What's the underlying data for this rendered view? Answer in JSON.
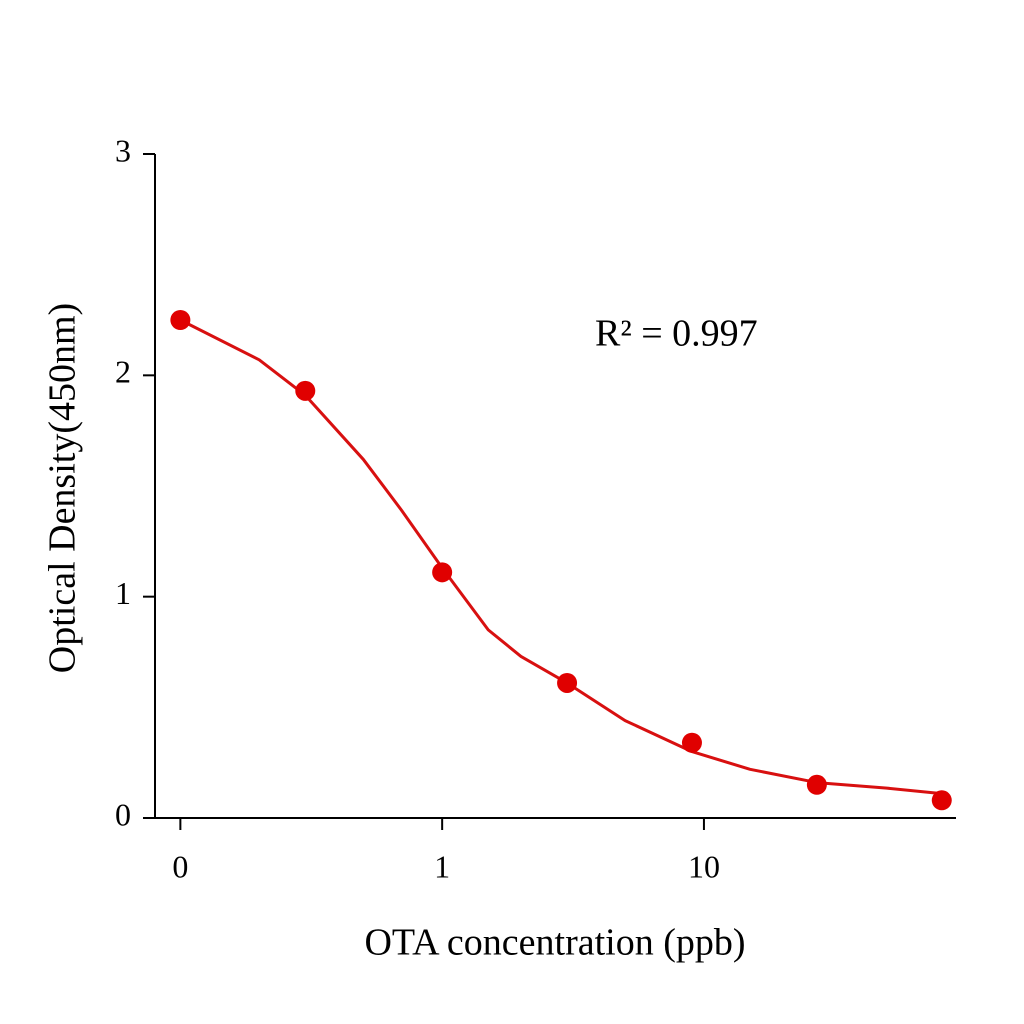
{
  "chart_data": {
    "type": "scatter",
    "x_label": "OTA concentration (ppb)",
    "y_label": "Optical Density(450nm)",
    "annotation": "R² = 0.997",
    "xscale": "log",
    "xlim": [
      0.08,
      91
    ],
    "ylim": [
      0,
      3
    ],
    "xticks": [
      {
        "value": 0.1,
        "label": "0"
      },
      1,
      10
    ],
    "yticks": [
      0,
      1,
      2,
      3
    ],
    "grid": false,
    "series": [
      {
        "mode": "markers",
        "color": "#e00000",
        "x": [
          0.1,
          0.3,
          1,
          3,
          9,
          27,
          81
        ],
        "values": [
          2.25,
          1.93,
          1.11,
          0.61,
          0.34,
          0.15,
          0.08
        ]
      },
      {
        "mode": "line",
        "color": "#d81010",
        "x": [
          0.1,
          0.2,
          0.3,
          0.5,
          0.7,
          1,
          1.5,
          2,
          3,
          5,
          9,
          15,
          27,
          50,
          81
        ],
        "values": [
          2.25,
          2.07,
          1.91,
          1.62,
          1.39,
          1.13,
          0.85,
          0.73,
          0.61,
          0.44,
          0.3,
          0.22,
          0.16,
          0.135,
          0.11
        ]
      }
    ]
  }
}
